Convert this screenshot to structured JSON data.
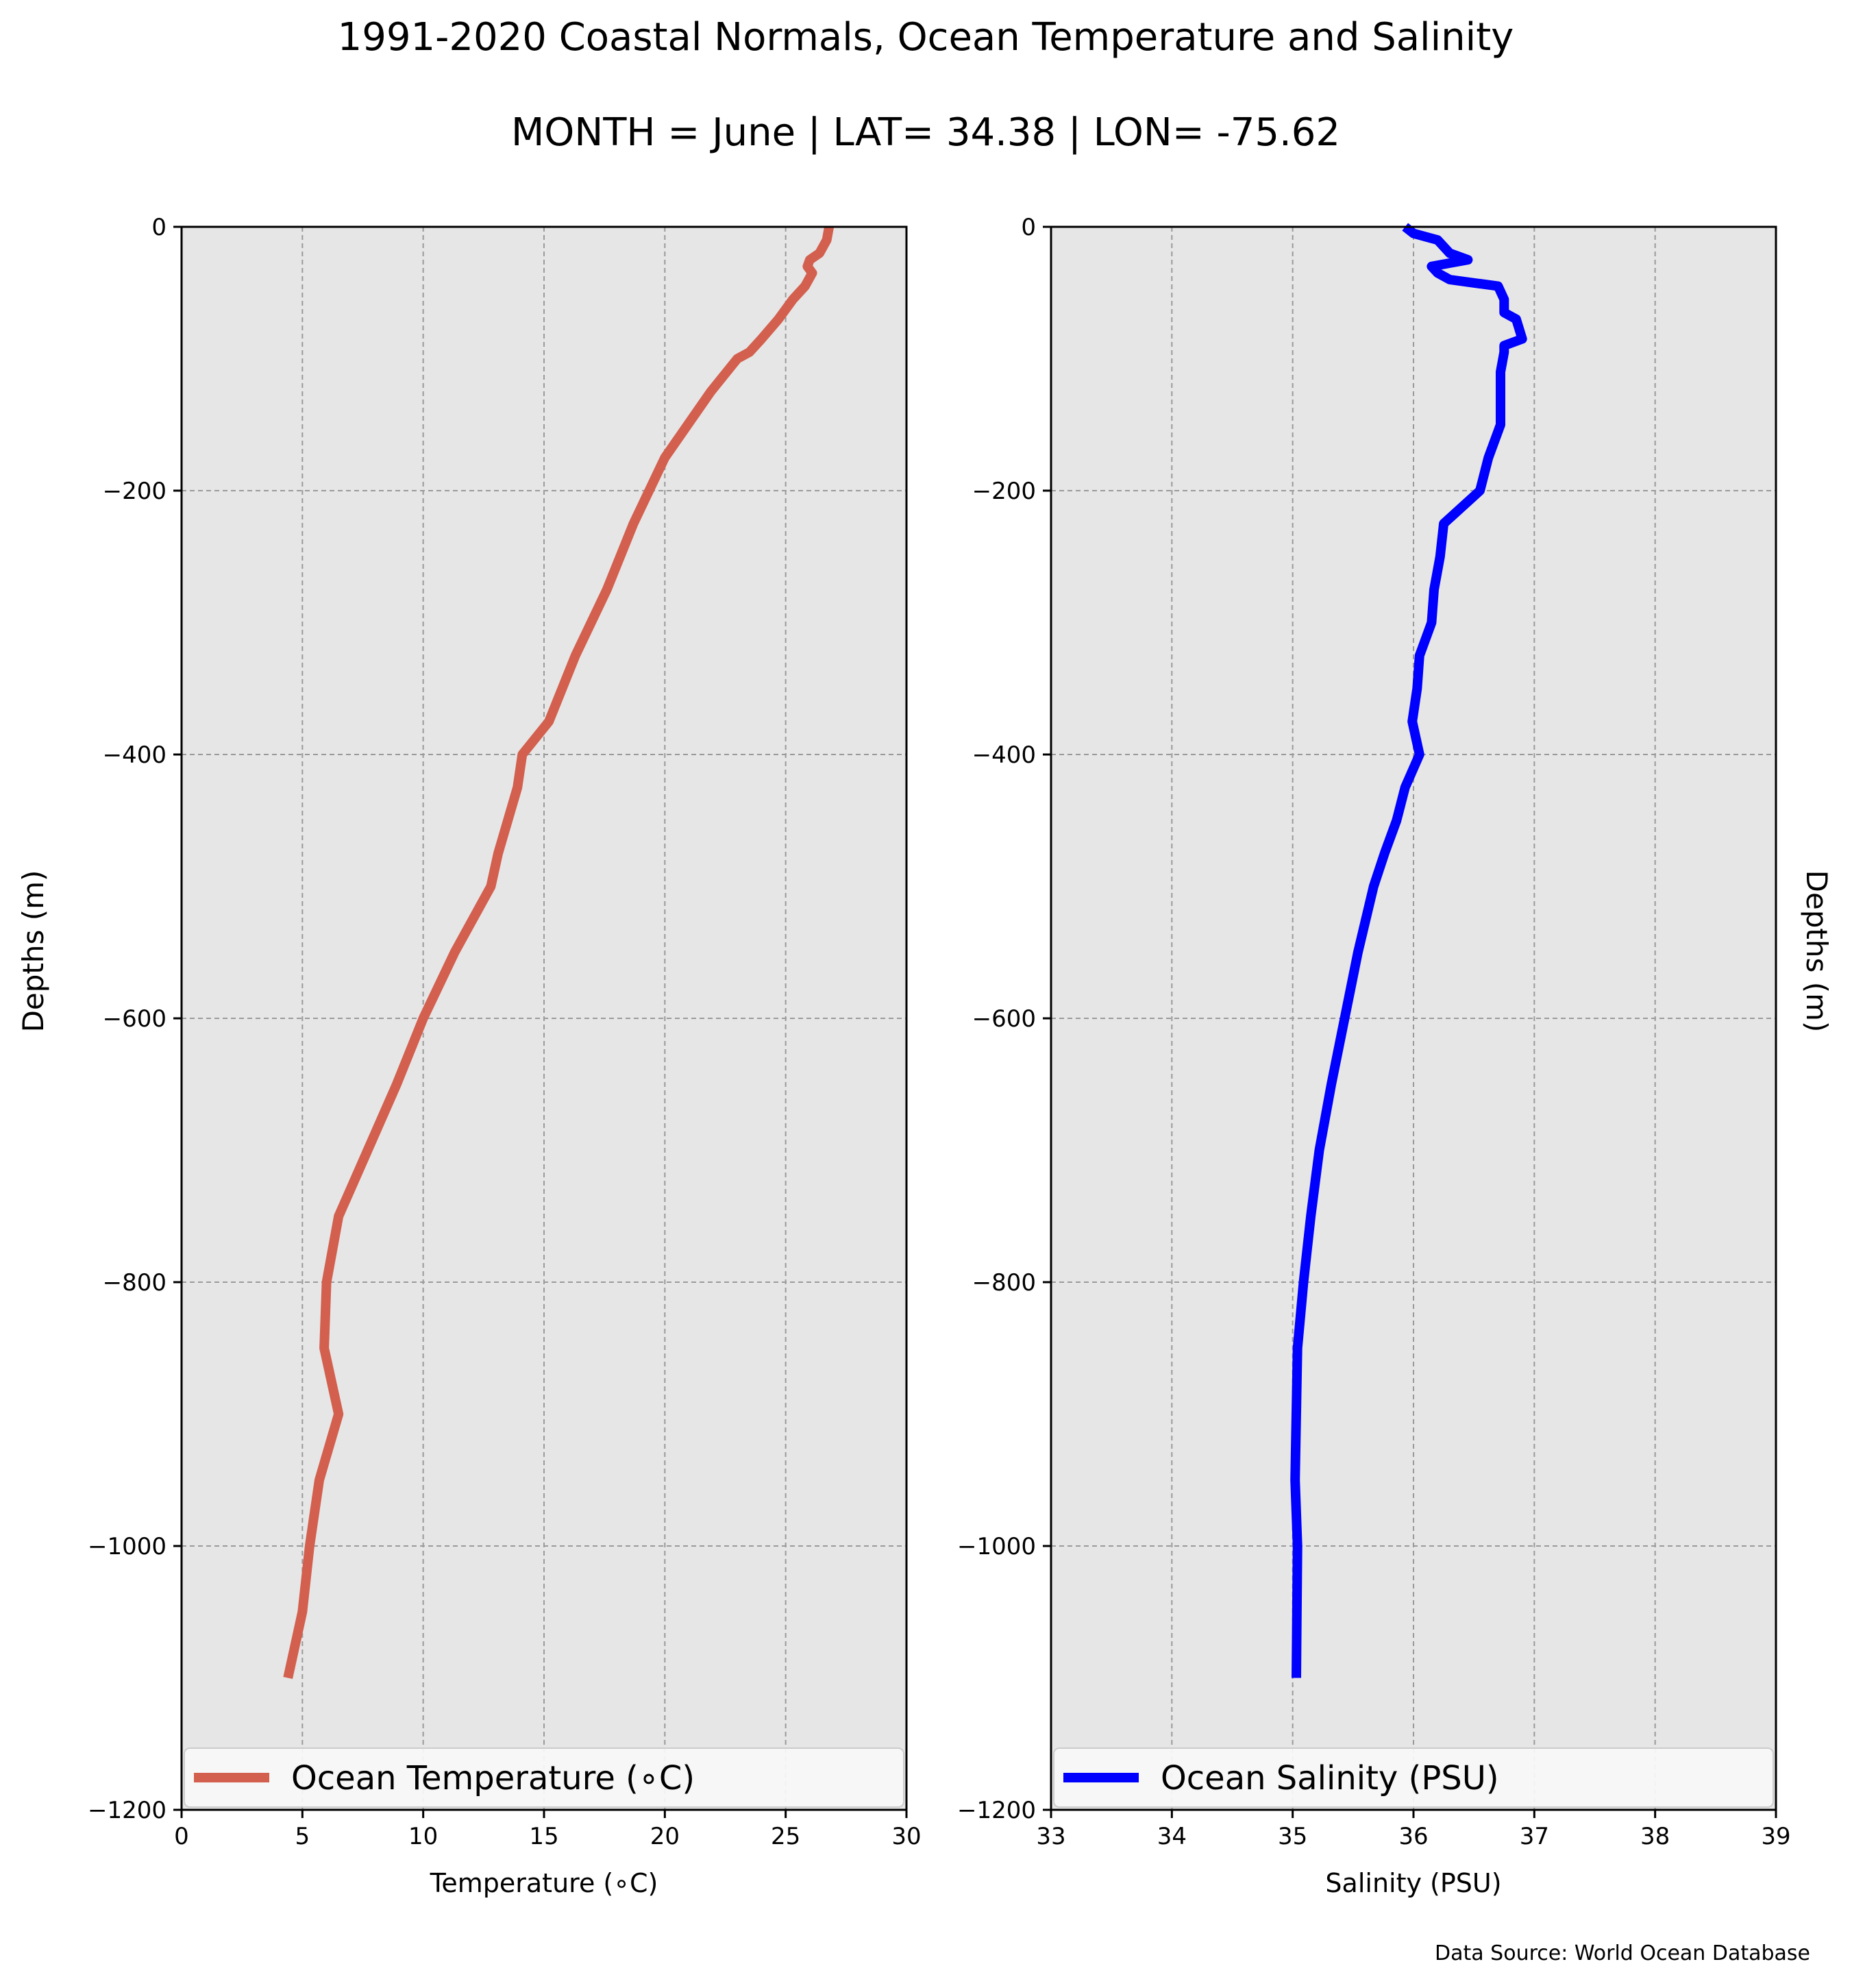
{
  "figure": {
    "title": "1991-2020 Coastal Normals, Ocean Temperature and Salinity",
    "subtitle": "MONTH = June | LAT= 34.38 | LON= -75.62",
    "source": "Data Source: World Ocean Database",
    "background": "#e6e6e6",
    "grid": true
  },
  "chart_data": [
    {
      "type": "line",
      "xlabel": "Temperature ($^\\circ$C)",
      "xlabel_display": "Temperature (∘C)",
      "ylabel": "Depths (m)",
      "xlim": [
        0,
        30
      ],
      "ylim": [
        -1200,
        0
      ],
      "xticks": [
        0,
        5,
        10,
        15,
        20,
        25,
        30
      ],
      "yticks": [
        0,
        -200,
        -400,
        -600,
        -800,
        -1000,
        -1200
      ],
      "ytick_labels": [
        "0",
        "−200",
        "−400",
        "−600",
        "−800",
        "−1000",
        "−1200"
      ],
      "legend_position": "bottom",
      "series": [
        {
          "name": "Ocean Temperature (∘C)",
          "color": "#d35f4e",
          "x": [
            26.8,
            26.7,
            26.4,
            26.0,
            25.9,
            26.1,
            25.8,
            25.3,
            24.7,
            24.0,
            23.5,
            23.0,
            21.9,
            20.0,
            18.7,
            17.6,
            16.3,
            15.2,
            14.1,
            13.9,
            13.5,
            13.1,
            12.8,
            11.3,
            10.0,
            8.9,
            7.7,
            6.5,
            6.0,
            5.9,
            6.5,
            5.7,
            5.3,
            5.0,
            4.4
          ],
          "y": [
            0,
            -10,
            -20,
            -25,
            -30,
            -35,
            -45,
            -55,
            -70,
            -85,
            -95,
            -100,
            -125,
            -175,
            -225,
            -275,
            -325,
            -375,
            -400,
            -425,
            -450,
            -475,
            -500,
            -550,
            -600,
            -650,
            -700,
            -750,
            -800,
            -850,
            -900,
            -950,
            -1000,
            -1050,
            -1100
          ]
        }
      ]
    },
    {
      "type": "line",
      "xlabel": "Salinity (PSU)",
      "ylabel": "Depths (m)",
      "xlim": [
        33,
        39
      ],
      "ylim": [
        -1200,
        0
      ],
      "xticks": [
        33,
        34,
        35,
        36,
        37,
        38,
        39
      ],
      "yticks": [
        0,
        -200,
        -400,
        -600,
        -800,
        -1000,
        -1200
      ],
      "ytick_labels": [
        "0",
        "−200",
        "−400",
        "−600",
        "−800",
        "−1000",
        "−1200"
      ],
      "legend_position": "bottom",
      "series": [
        {
          "name": "Ocean Salinity (PSU)",
          "color": "#0000ff",
          "x": [
            35.93,
            36.0,
            36.2,
            36.3,
            36.45,
            36.15,
            36.2,
            36.3,
            36.7,
            36.75,
            36.75,
            36.85,
            36.9,
            36.75,
            36.75,
            36.72,
            36.72,
            36.72,
            36.62,
            36.55,
            36.25,
            36.22,
            36.17,
            36.15,
            36.05,
            36.03,
            35.99,
            36.05,
            35.93,
            35.86,
            35.76,
            35.67,
            35.54,
            35.43,
            35.32,
            35.22,
            35.15,
            35.09,
            35.04,
            35.02,
            35.04,
            35.03
          ],
          "y": [
            0,
            -5,
            -10,
            -20,
            -25,
            -30,
            -35,
            -40,
            -45,
            -55,
            -65,
            -70,
            -85,
            -90,
            -95,
            -110,
            -125,
            -150,
            -175,
            -200,
            -225,
            -250,
            -275,
            -300,
            -325,
            -350,
            -375,
            -400,
            -425,
            -450,
            -475,
            -500,
            -550,
            -600,
            -650,
            -700,
            -750,
            -800,
            -850,
            -950,
            -1000,
            -1100
          ]
        }
      ]
    }
  ]
}
